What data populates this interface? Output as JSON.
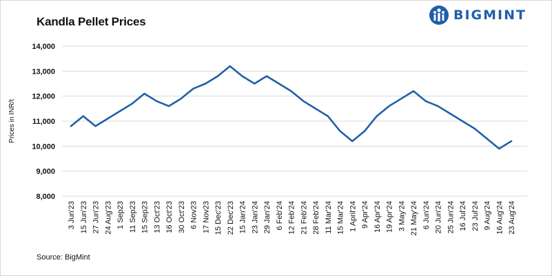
{
  "title": "Kandla Pellet Prices",
  "source": "Source: BigMint",
  "logo": {
    "text": "BIGMINT",
    "color": "#1f5fa8",
    "icon": "bigmint-logo-icon"
  },
  "colors": {
    "line": "#1f5fa8",
    "grid": "#d9d9d9"
  },
  "chart_data": {
    "type": "line",
    "title": "Kandla Pellet Prices",
    "ylabel": "Prices in INR/t",
    "xlabel": "",
    "ylim": [
      8000,
      14000
    ],
    "yticks": [
      8000,
      9000,
      10000,
      11000,
      12000,
      13000,
      14000
    ],
    "ytick_labels": [
      "8,000",
      "9,000",
      "10,000",
      "11,000",
      "12,000",
      "13,000",
      "14,000"
    ],
    "grid": true,
    "legend": "none",
    "categories": [
      "3 Jun'23",
      "15 Jun'23",
      "27 Jun'23",
      "24 Aug'23",
      "1 Sep23",
      "11 Sep23",
      "15 Sep23",
      "13 Oct'23",
      "16 Oct'23",
      "30 Oct'23",
      "6 Nov23",
      "17 Nov23",
      "15 Dec'23",
      "22 Dec'23",
      "15 Jan'24",
      "23 Jan'24",
      "29 Jan'24",
      "6 Feb'24",
      "12 Feb'24",
      "21 Feb'24",
      "28 Feb'24",
      "11 Mar'24",
      "15 Mar'24",
      "1 April'24",
      "9 Apr'24",
      "16 Apr'24",
      "19 Apr'24",
      "3 May'24",
      "21 May'24",
      "6 Jun'24",
      "20 Jun'24",
      "25 Jun'24",
      "16 Jul'24",
      "23 Jul'24",
      "9 Aug'24",
      "16 Aug'24",
      "23 Aug'24"
    ],
    "series": [
      {
        "values": [
          10800,
          11200,
          10800,
          11100,
          11400,
          11700,
          12100,
          11800,
          11600,
          11900,
          12300,
          12500,
          12800,
          13200,
          12800,
          12500,
          12800,
          12500,
          12200,
          11800,
          11500,
          11200,
          10600,
          10200,
          10600,
          11200,
          11600,
          11900,
          12200,
          11800,
          11600,
          11300,
          11000,
          10700,
          10300,
          9900,
          10200
        ]
      }
    ]
  }
}
